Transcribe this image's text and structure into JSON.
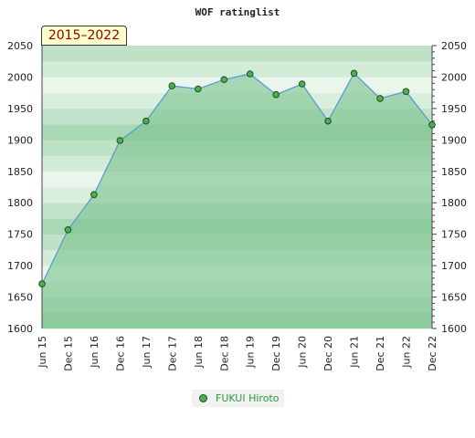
{
  "chart_data": {
    "type": "area",
    "title": "WOF ratinglist",
    "badge": "2015–2022",
    "categories": [
      "Jun 15",
      "Dec 15",
      "Jun 16",
      "Dec 16",
      "Jun 17",
      "Dec 17",
      "Jun 18",
      "Dec 18",
      "Jun 19",
      "Dec 19",
      "Jun 20",
      "Dec 20",
      "Jun 21",
      "Dec 21",
      "Jun 22",
      "Dec 22"
    ],
    "series": [
      {
        "name": "FUKUI Hiroto",
        "values": [
          1671,
          1757,
          1813,
          1899,
          1930,
          1986,
          1981,
          1996,
          2005,
          1972,
          1989,
          1930,
          2006,
          1966,
          1977,
          1924
        ]
      }
    ],
    "ylim": [
      1600,
      2050
    ],
    "yticks": [
      1600,
      1650,
      1700,
      1750,
      1800,
      1850,
      1900,
      1950,
      2000,
      2050
    ],
    "legend_position": "bottom-center",
    "colors": {
      "line": "#5b9bd5",
      "fill": "#7cc48f",
      "marker": "#4caf50",
      "marker_edge": "#1c4f1c"
    }
  }
}
